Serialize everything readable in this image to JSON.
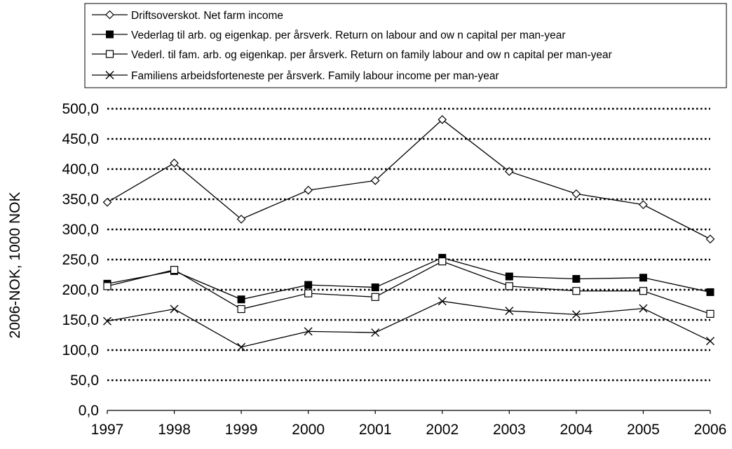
{
  "chart_data": {
    "type": "line",
    "title": "",
    "xlabel": "",
    "ylabel": "2006-NOK, 1000 NOK",
    "categories": [
      "1997",
      "1998",
      "1999",
      "2000",
      "2001",
      "2002",
      "2003",
      "2004",
      "2005",
      "2006"
    ],
    "y_tick_labels": [
      "0,0",
      "50,0",
      "100,0",
      "150,0",
      "200,0",
      "250,0",
      "300,0",
      "350,0",
      "400,0",
      "450,0",
      "500,0"
    ],
    "ylim": [
      0,
      500
    ],
    "grid": "horizontal dotted",
    "legend_placement": "top",
    "series": [
      {
        "name": "Driftsoverskot. Net farm income",
        "marker": "open-diamond",
        "values": [
          345,
          410,
          317,
          365,
          381,
          482,
          396,
          359,
          341,
          284
        ]
      },
      {
        "name": "Vederlag til arb. og eigenkap. per årsverk. Return on labour and ow n capital per man-year",
        "marker": "filled-square",
        "values": [
          210,
          231,
          184,
          208,
          204,
          253,
          222,
          218,
          220,
          196
        ]
      },
      {
        "name": "Vederl. til fam. arb. og eigenkap. per årsverk. Return on family labour and ow n capital per man-year",
        "marker": "open-square",
        "values": [
          206,
          233,
          168,
          194,
          188,
          247,
          206,
          198,
          198,
          160
        ]
      },
      {
        "name": "Familiens arbeidsforteneste per årsverk.  Family labour income per man-year",
        "marker": "x",
        "values": [
          148,
          168,
          105,
          131,
          129,
          181,
          165,
          159,
          169,
          115
        ]
      }
    ]
  },
  "colors": {
    "line": "#000000",
    "background": "#ffffff"
  }
}
